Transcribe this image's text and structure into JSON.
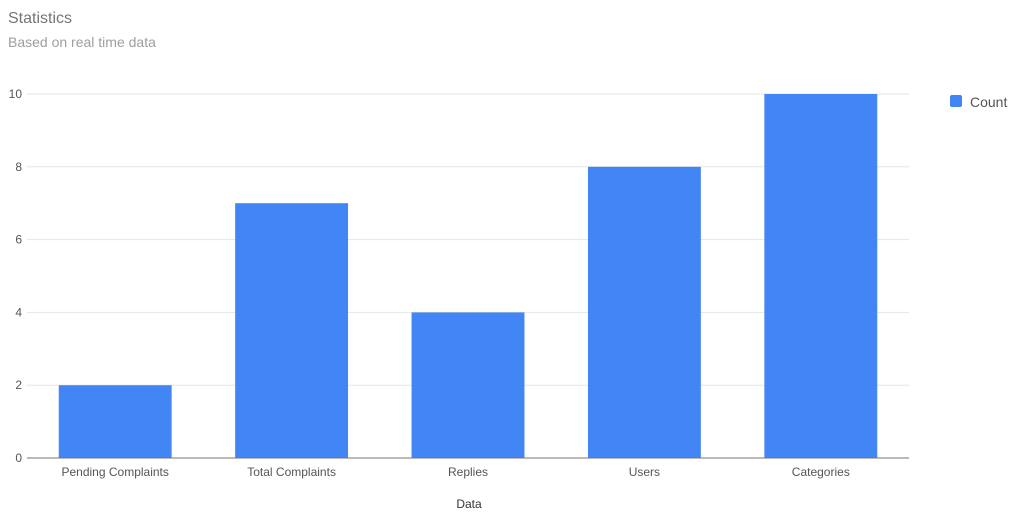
{
  "chart_data": {
    "type": "bar",
    "title": "Statistics",
    "subtitle": "Based on real time data",
    "xlabel": "Data",
    "ylabel": "",
    "categories": [
      "Pending Complaints",
      "Total Complaints",
      "Replies",
      "Users",
      "Categories"
    ],
    "series": [
      {
        "name": "Count",
        "values": [
          2,
          7,
          4,
          8,
          10
        ]
      }
    ],
    "ylim": [
      0,
      10
    ],
    "yticks": [
      0,
      2,
      4,
      6,
      8,
      10
    ],
    "grid": true,
    "legend_position": "right",
    "colors": {
      "bar": "#4285f4",
      "grid": "#e6e6e6",
      "axis": "#757575",
      "tick_text": "#555555",
      "legend_text": "#555555"
    }
  }
}
